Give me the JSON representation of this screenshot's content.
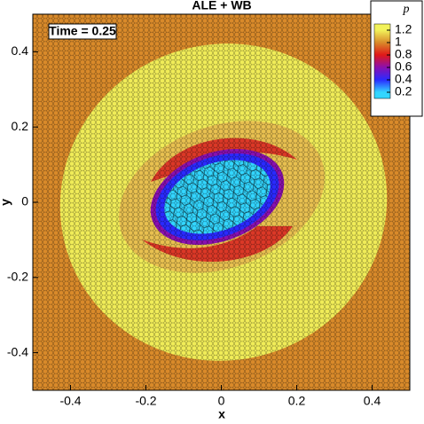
{
  "chart_data": {
    "type": "contour",
    "title": "ALE + WB",
    "annotation": "Time = 0.25",
    "xlabel": "x",
    "ylabel": "y",
    "xlim": [
      -0.5,
      0.5
    ],
    "ylim": [
      -0.5,
      0.5
    ],
    "xticks": [
      -0.4,
      -0.2,
      0,
      0.2,
      0.4
    ],
    "yticks": [
      -0.4,
      -0.2,
      0,
      0.2,
      0.4
    ],
    "colorbar": {
      "label": "p",
      "lim": [
        0.1,
        1.3
      ],
      "ticks": [
        0.2,
        0.4,
        0.6,
        0.8,
        1,
        1.2
      ],
      "colors": [
        "#33d6ff",
        "#2a2aff",
        "#8a10b0",
        "#e01818",
        "#d98a2a",
        "#f2f25a"
      ]
    }
  }
}
